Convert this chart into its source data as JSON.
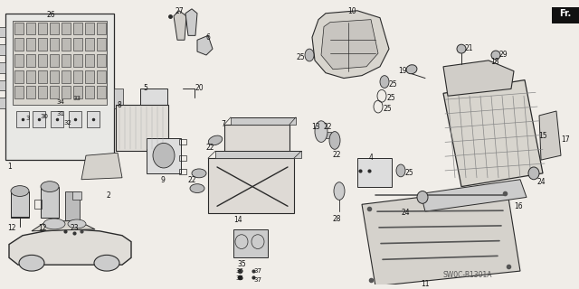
{
  "bg_color": "#f0ede8",
  "line_color": "#2a2a2a",
  "fig_width": 6.4,
  "fig_height": 3.2,
  "dpi": 100,
  "diagram_code": "SW0C-B1301A"
}
